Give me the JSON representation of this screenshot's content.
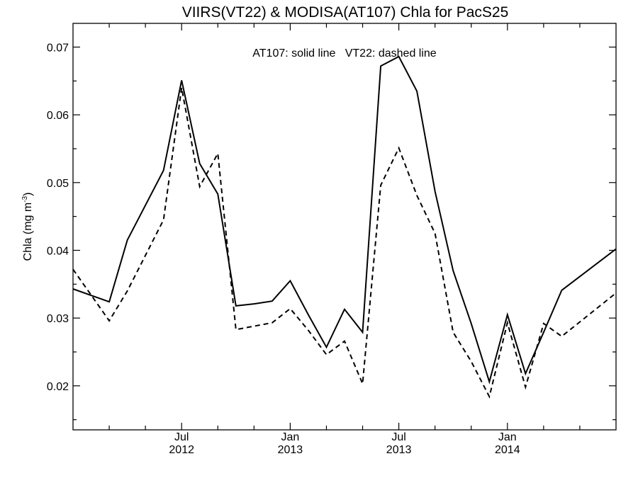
{
  "chart_data": {
    "type": "line",
    "title": "VIIRS(VT22) & MODISA(AT107)  Chla for PacS25",
    "annotation": "AT107: solid line   VT22: dashed line",
    "ylabel_main": "Chla (mg m",
    "ylabel_exp": "-3",
    "ylabel_close": ")",
    "xlabel": "",
    "x_start": "2012-01",
    "x_end": "2014-07",
    "ylim": [
      0.0135,
      0.0735
    ],
    "y_ticks": [
      0.02,
      0.03,
      0.04,
      0.05,
      0.06,
      0.07
    ],
    "y_tick_labels": [
      "0.02",
      "0.03",
      "0.04",
      "0.05",
      "0.06",
      "0.07"
    ],
    "x_major_ticks": [
      {
        "date": "2012-07",
        "month": "Jul",
        "year": "2012"
      },
      {
        "date": "2013-01",
        "month": "Jan",
        "year": "2013"
      },
      {
        "date": "2013-07",
        "month": "Jul",
        "year": "2013"
      },
      {
        "date": "2014-01",
        "month": "Jan",
        "year": "2014"
      }
    ],
    "x_minor_ticks": [
      "2012-03",
      "2012-05",
      "2012-09",
      "2012-11",
      "2013-03",
      "2013-05",
      "2013-09",
      "2013-11",
      "2014-03",
      "2014-05"
    ],
    "series": [
      {
        "name": "AT107",
        "style": "solid",
        "points": [
          [
            "2012-01",
            0.0343
          ],
          [
            "2012-03",
            0.0324
          ],
          [
            "2012-04",
            0.0415
          ],
          [
            "2012-06",
            0.0518
          ],
          [
            "2012-07",
            0.0651
          ],
          [
            "2012-08",
            0.0528
          ],
          [
            "2012-09",
            0.0483
          ],
          [
            "2012-10",
            0.0318
          ],
          [
            "2012-11",
            0.0321
          ],
          [
            "2012-12",
            0.0325
          ],
          [
            "2013-01",
            0.0355
          ],
          [
            "2013-02",
            0.0305
          ],
          [
            "2013-03",
            0.0257
          ],
          [
            "2013-04",
            0.0313
          ],
          [
            "2013-05",
            0.0279
          ],
          [
            "2013-06",
            0.0672
          ],
          [
            "2013-07",
            0.0686
          ],
          [
            "2013-08",
            0.0635
          ],
          [
            "2013-09",
            0.0487
          ],
          [
            "2013-10",
            0.037
          ],
          [
            "2013-11",
            0.0292
          ],
          [
            "2013-12",
            0.0206
          ],
          [
            "2014-01",
            0.0305
          ],
          [
            "2014-02",
            0.0218
          ],
          [
            "2014-03",
            0.0279
          ],
          [
            "2014-04",
            0.0341
          ],
          [
            "2014-07",
            0.0402
          ]
        ]
      },
      {
        "name": "VT22",
        "style": "dashed",
        "points": [
          [
            "2012-01",
            0.0372
          ],
          [
            "2012-03",
            0.0296
          ],
          [
            "2012-04",
            0.034
          ],
          [
            "2012-06",
            0.0445
          ],
          [
            "2012-07",
            0.064
          ],
          [
            "2012-08",
            0.0494
          ],
          [
            "2012-09",
            0.0543
          ],
          [
            "2012-10",
            0.0283
          ],
          [
            "2012-11",
            0.0288
          ],
          [
            "2012-12",
            0.0293
          ],
          [
            "2013-01",
            0.0314
          ],
          [
            "2013-02",
            0.0282
          ],
          [
            "2013-03",
            0.0246
          ],
          [
            "2013-04",
            0.0266
          ],
          [
            "2013-05",
            0.0203
          ],
          [
            "2013-06",
            0.0496
          ],
          [
            "2013-07",
            0.0551
          ],
          [
            "2013-08",
            0.0481
          ],
          [
            "2013-09",
            0.0425
          ],
          [
            "2013-10",
            0.0279
          ],
          [
            "2013-11",
            0.0236
          ],
          [
            "2013-12",
            0.0184
          ],
          [
            "2014-01",
            0.0293
          ],
          [
            "2014-02",
            0.0198
          ],
          [
            "2014-03",
            0.0292
          ],
          [
            "2014-04",
            0.0273
          ],
          [
            "2014-07",
            0.0337
          ]
        ]
      }
    ]
  }
}
